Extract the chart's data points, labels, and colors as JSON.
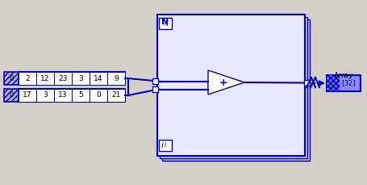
{
  "bg_color": "#d4d0c8",
  "blue": "#0000cc",
  "blue_med": "#0000ff",
  "box_fill": "#ffffff",
  "loop_fill": "#e8e8ff",
  "shadow_fill": "#c0c0d0",
  "text_color": "#000000",
  "array1_values": [
    "2",
    "12",
    "23",
    "3",
    "14",
    "9"
  ],
  "array2_values": [
    "17",
    "3",
    "13",
    "5",
    "0",
    "21"
  ],
  "fig_w": 4.55,
  "fig_h": 2.29,
  "dpi": 100
}
